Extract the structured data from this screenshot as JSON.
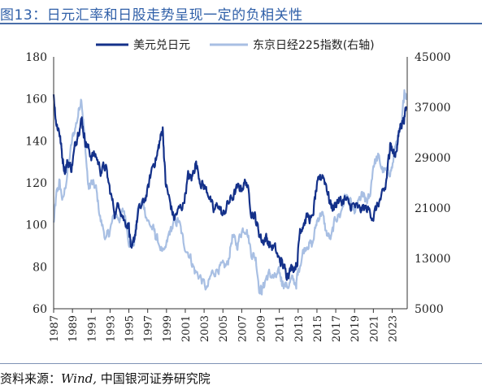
{
  "title": "图13：日元汇率和日股走势呈现一定的负相关性",
  "source_prefix": "资料来源：",
  "source_wind": "Wind,",
  "source_suffix": "中国银河证券研究院",
  "colors": {
    "title": "#2f5fa8",
    "usdjpy": "#14318a",
    "nikkei": "#a8bfe3",
    "axis": "#333333"
  },
  "chart_data": {
    "type": "line",
    "title": "",
    "legend_position": "top",
    "grid": false,
    "x_range": [
      1987,
      2024.6
    ],
    "x_ticks": [
      "1987",
      "1989",
      "1991",
      "1993",
      "1995",
      "1997",
      "1999",
      "2001",
      "2003",
      "2005",
      "2007",
      "2009",
      "2011",
      "2013",
      "2015",
      "2017",
      "2019",
      "2021",
      "2023"
    ],
    "y_left": {
      "min": 60,
      "max": 180,
      "ticks": [
        "60",
        "80",
        "100",
        "120",
        "140",
        "160",
        "180"
      ]
    },
    "y_right": {
      "min": 5000,
      "max": 45000,
      "ticks": [
        "5000",
        "13000",
        "21000",
        "29000",
        "37000",
        "45000"
      ]
    },
    "series": [
      {
        "name": "美元兑日元",
        "axis": "left",
        "x": [
          1987.0,
          1987.3,
          1987.6,
          1987.9,
          1988.2,
          1988.5,
          1988.9,
          1989.3,
          1989.6,
          1990.0,
          1990.3,
          1990.6,
          1991.0,
          1991.5,
          1992.0,
          1992.5,
          1993.0,
          1993.5,
          1994.0,
          1994.5,
          1995.0,
          1995.3,
          1995.6,
          1996.0,
          1996.5,
          1997.0,
          1997.5,
          1998.0,
          1998.3,
          1998.6,
          1998.9,
          1999.3,
          1999.8,
          2000.3,
          2000.8,
          2001.3,
          2001.7,
          2002.1,
          2002.6,
          2003.0,
          2003.5,
          2004.0,
          2004.5,
          2005.0,
          2005.5,
          2006.0,
          2006.5,
          2007.0,
          2007.5,
          2008.0,
          2008.4,
          2008.8,
          2009.2,
          2009.6,
          2010.0,
          2010.5,
          2011.0,
          2011.3,
          2011.7,
          2012.0,
          2012.5,
          2012.9,
          2013.2,
          2013.5,
          2014.0,
          2014.5,
          2014.9,
          2015.3,
          2015.6,
          2016.0,
          2016.4,
          2016.8,
          2017.2,
          2017.6,
          2018.0,
          2018.5,
          2019.0,
          2019.5,
          2020.0,
          2020.5,
          2021.0,
          2021.5,
          2022.0,
          2022.3,
          2022.6,
          2022.8,
          2023.0,
          2023.3,
          2023.6,
          2023.9,
          2024.2,
          2024.5
        ],
        "y": [
          162,
          148,
          145,
          133,
          126,
          130,
          127,
          138,
          145,
          150,
          141,
          137,
          133,
          133,
          126,
          128,
          116,
          106,
          110,
          102,
          100,
          86,
          94,
          106,
          110,
          116,
          128,
          133,
          140,
          146,
          120,
          112,
          103,
          107,
          110,
          123,
          122,
          130,
          121,
          118,
          115,
          106,
          110,
          104,
          110,
          113,
          117,
          118,
          121,
          107,
          104,
          97,
          92,
          94,
          90,
          89,
          83,
          82,
          77,
          78,
          80,
          82,
          98,
          100,
          104,
          102,
          116,
          122,
          124,
          119,
          110,
          108,
          112,
          111,
          112,
          109,
          109,
          107,
          108,
          107,
          104,
          110,
          114,
          118,
          130,
          140,
          135,
          133,
          140,
          148,
          150,
          155
        ]
      },
      {
        "name": "东京日经225指数(右轴)",
        "axis": "right",
        "x": [
          1987.0,
          1987.3,
          1987.6,
          1988.0,
          1988.5,
          1989.0,
          1989.5,
          1989.95,
          1990.3,
          1990.7,
          1991.0,
          1991.5,
          1992.0,
          1992.6,
          1993.0,
          1993.5,
          1994.0,
          1994.5,
          1995.0,
          1995.5,
          1996.0,
          1996.5,
          1997.0,
          1997.6,
          1998.0,
          1998.8,
          1999.3,
          1999.8,
          2000.3,
          2000.8,
          2001.5,
          2002.0,
          2002.6,
          2003.3,
          2003.8,
          2004.5,
          2005.0,
          2005.5,
          2006.0,
          2006.5,
          2007.0,
          2007.5,
          2008.0,
          2008.5,
          2008.9,
          2009.2,
          2009.6,
          2010.0,
          2010.5,
          2011.0,
          2011.3,
          2011.8,
          2012.3,
          2012.8,
          2013.0,
          2013.5,
          2014.0,
          2014.5,
          2015.0,
          2015.5,
          2016.0,
          2016.5,
          2017.0,
          2017.5,
          2018.0,
          2018.5,
          2018.95,
          2019.3,
          2019.8,
          2020.2,
          2020.6,
          2021.0,
          2021.5,
          2022.0,
          2022.5,
          2023.0,
          2023.5,
          2024.0,
          2024.3,
          2024.5
        ],
        "y": [
          18500,
          23000,
          25000,
          22000,
          27000,
          32000,
          35000,
          38900,
          32000,
          24000,
          25000,
          24000,
          19000,
          16000,
          17500,
          20000,
          19500,
          20500,
          16000,
          15000,
          21000,
          22000,
          19000,
          17500,
          16000,
          13500,
          17000,
          18500,
          19000,
          15500,
          13500,
          11000,
          10000,
          8000,
          10500,
          11500,
          11500,
          12000,
          16500,
          15000,
          17500,
          18000,
          14000,
          13000,
          8000,
          8000,
          10000,
          10500,
          9800,
          10500,
          9500,
          8500,
          9500,
          9000,
          11000,
          14000,
          15500,
          15000,
          19000,
          20500,
          17000,
          16000,
          19500,
          20000,
          23000,
          22000,
          20000,
          21500,
          23000,
          22000,
          22500,
          28000,
          29000,
          27000,
          26500,
          27500,
          32000,
          33500,
          40000,
          38500
        ]
      }
    ]
  }
}
